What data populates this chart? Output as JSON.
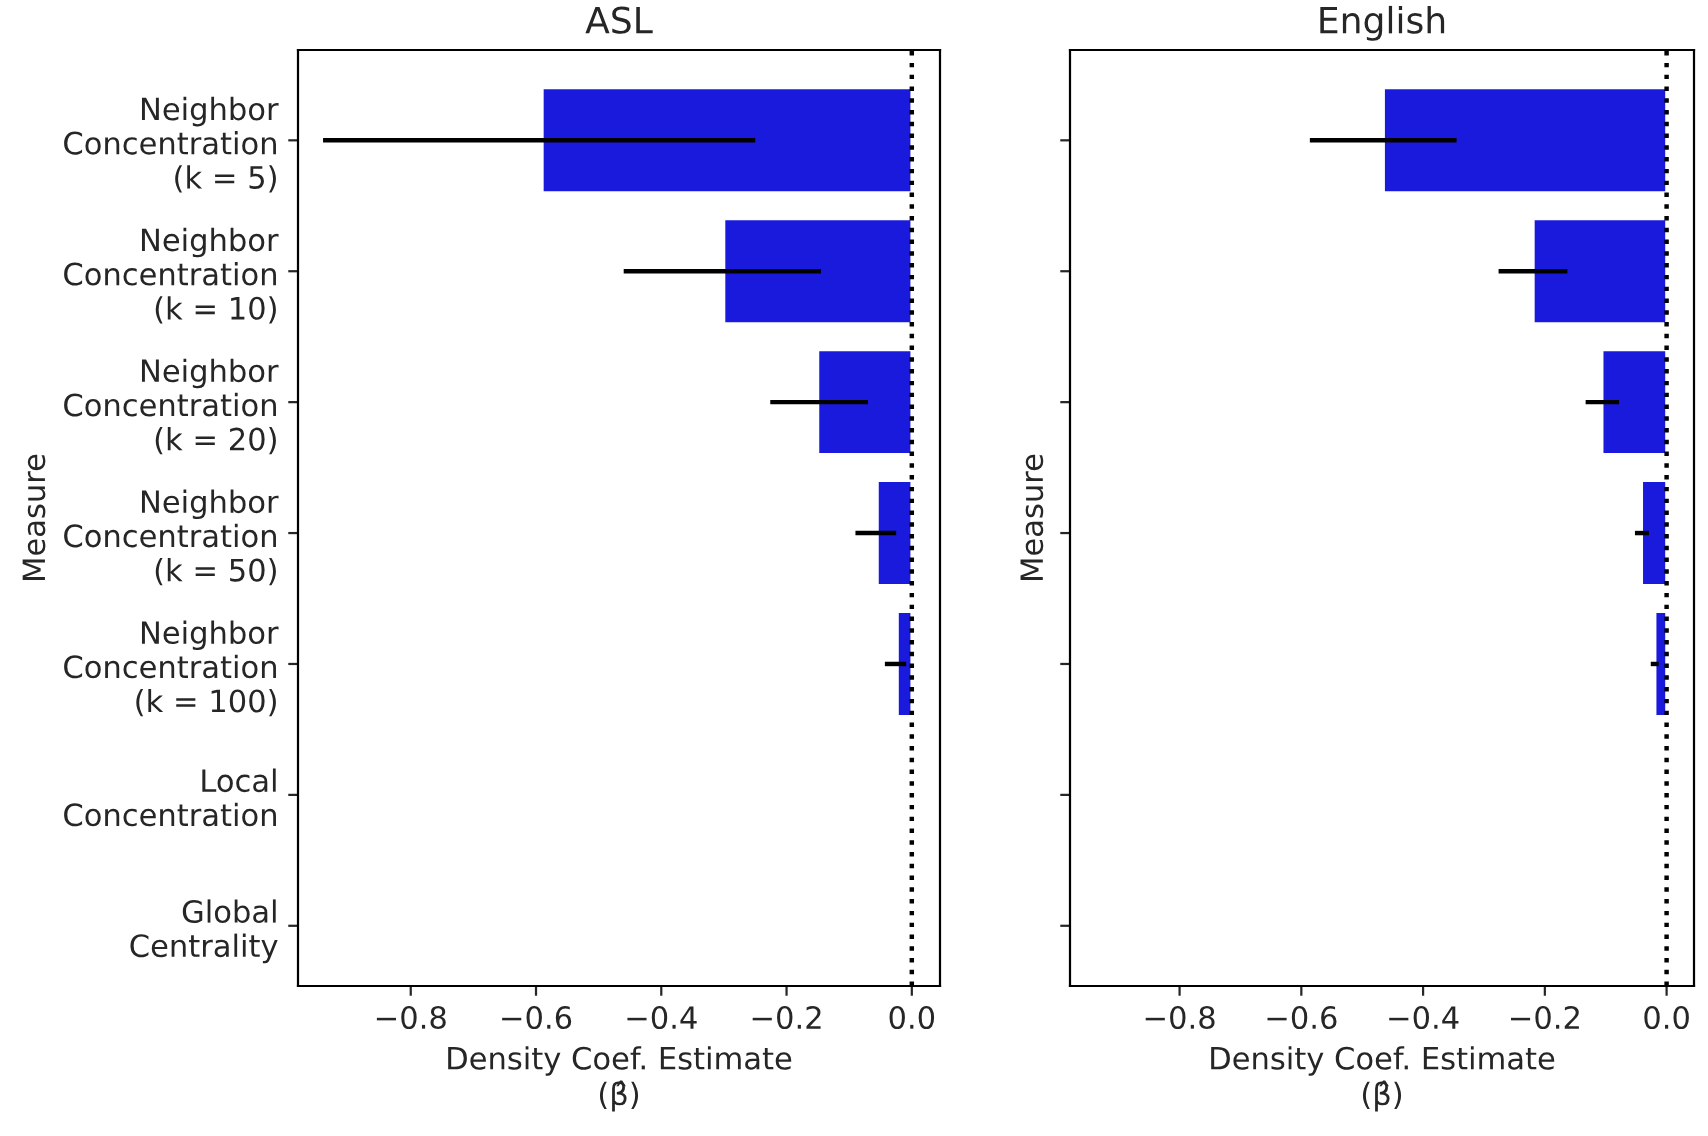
{
  "chart_data": [
    {
      "type": "bar",
      "orientation": "horizontal",
      "title": "ASL",
      "xlabel": "Density Coef. Estimate\n(β̂)",
      "ylabel": "Measure",
      "categories": [
        "Neighbor\nConcentration\n(k = 5)",
        "Neighbor\nConcentration\n(k = 10)",
        "Neighbor\nConcentration\n(k = 20)",
        "Neighbor\nConcentration\n(k = 50)",
        "Neighbor\nConcentration\n(k = 100)",
        "Local\nConcentration",
        "Global\nCentrality"
      ],
      "series": [
        {
          "color": "#1a1adc",
          "values": [
            -0.59,
            -0.3,
            -0.15,
            -0.055,
            -0.023,
            null,
            null
          ],
          "errors": [
            [
              -0.94,
              -0.25
            ],
            [
              -0.46,
              -0.145
            ],
            [
              -0.226,
              -0.07
            ],
            [
              -0.09,
              -0.025
            ],
            [
              -0.043,
              -0.009
            ],
            null,
            null
          ]
        }
      ],
      "xlim": [
        -0.98,
        0.045
      ],
      "xticks": [
        {
          "value": -0.8,
          "label": "−0.8"
        },
        {
          "value": -0.6,
          "label": "−0.6"
        },
        {
          "value": -0.4,
          "label": "−0.4"
        },
        {
          "value": -0.2,
          "label": "−0.2"
        },
        {
          "value": 0.0,
          "label": "0.0"
        }
      ],
      "ref_lines": [
        {
          "axis": "x",
          "value": 0,
          "color": "#000000",
          "line_style": "dotted"
        }
      ]
    },
    {
      "type": "bar",
      "orientation": "horizontal",
      "title": "English",
      "xlabel": "Density Coef. Estimate\n(β̂)",
      "ylabel": "Measure",
      "categories": [
        null,
        null,
        null,
        null,
        null,
        null,
        null
      ],
      "series": [
        {
          "color": "#1a1adc",
          "values": [
            -0.465,
            -0.219,
            -0.106,
            -0.041,
            -0.019,
            null,
            null
          ],
          "errors": [
            [
              -0.586,
              -0.345
            ],
            [
              -0.276,
              -0.163
            ],
            [
              -0.133,
              -0.078
            ],
            [
              -0.052,
              -0.029
            ],
            [
              -0.026,
              -0.013
            ],
            null,
            null
          ]
        }
      ],
      "xlim": [
        -0.98,
        0.045
      ],
      "xticks": [
        {
          "value": -0.8,
          "label": "−0.8"
        },
        {
          "value": -0.6,
          "label": "−0.6"
        },
        {
          "value": -0.4,
          "label": "−0.4"
        },
        {
          "value": -0.2,
          "label": "−0.2"
        },
        {
          "value": 0.0,
          "label": "0.0"
        }
      ],
      "ref_lines": [
        {
          "axis": "x",
          "value": 0,
          "color": "#000000",
          "line_style": "dotted"
        }
      ],
      "tick_labels": "x"
    }
  ]
}
